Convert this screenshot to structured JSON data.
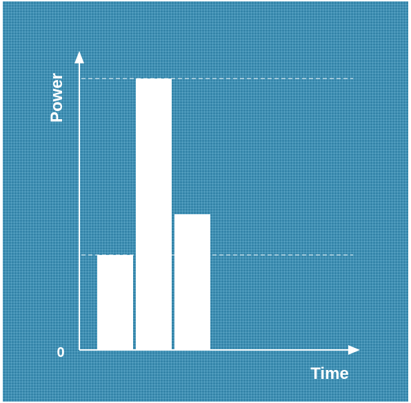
{
  "colors": {
    "background": "#3a8fb4",
    "foreground": "#ffffff"
  },
  "chart_data": {
    "type": "bar",
    "title": "",
    "xlabel": "Time",
    "ylabel": "Power",
    "y_tick_labels": [
      "0"
    ],
    "values": [
      35,
      100,
      50
    ],
    "ylim": [
      0,
      100
    ],
    "reference_lines": [
      100,
      35
    ],
    "grid": false,
    "legend": "none"
  }
}
